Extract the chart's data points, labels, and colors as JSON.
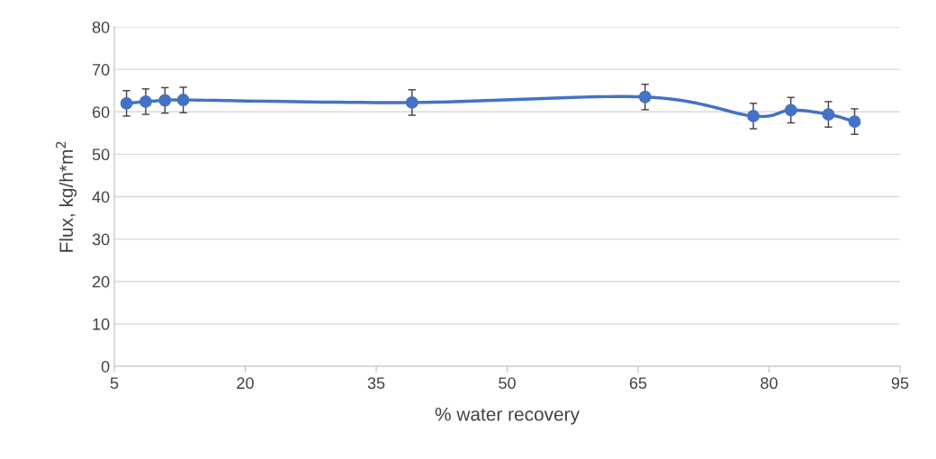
{
  "chart_data": {
    "type": "line",
    "xlabel": "% water recovery",
    "ylabel": "Flux, kg/h*m$^{2}$",
    "x": [
      6.4,
      8.6,
      10.8,
      12.9,
      39.1,
      65.8,
      78.2,
      82.5,
      86.8,
      89.8
    ],
    "series": [
      {
        "color": "#4472c4",
        "values": [
          62.0,
          62.4,
          62.7,
          62.8,
          62.2,
          63.5,
          59.0,
          60.4,
          59.4,
          57.7
        ],
        "errors": [
          3,
          3,
          3,
          3,
          3,
          3,
          3,
          3,
          3,
          3
        ]
      }
    ],
    "marker": "circle",
    "line_style": "solid",
    "xlim": [
      5,
      95
    ],
    "xticks": [
      5,
      20,
      35,
      50,
      65,
      80,
      95
    ],
    "ylim": [
      0,
      80
    ],
    "yticks": [
      0,
      10,
      20,
      30,
      40,
      50,
      60,
      70,
      80
    ],
    "grid": "y"
  }
}
